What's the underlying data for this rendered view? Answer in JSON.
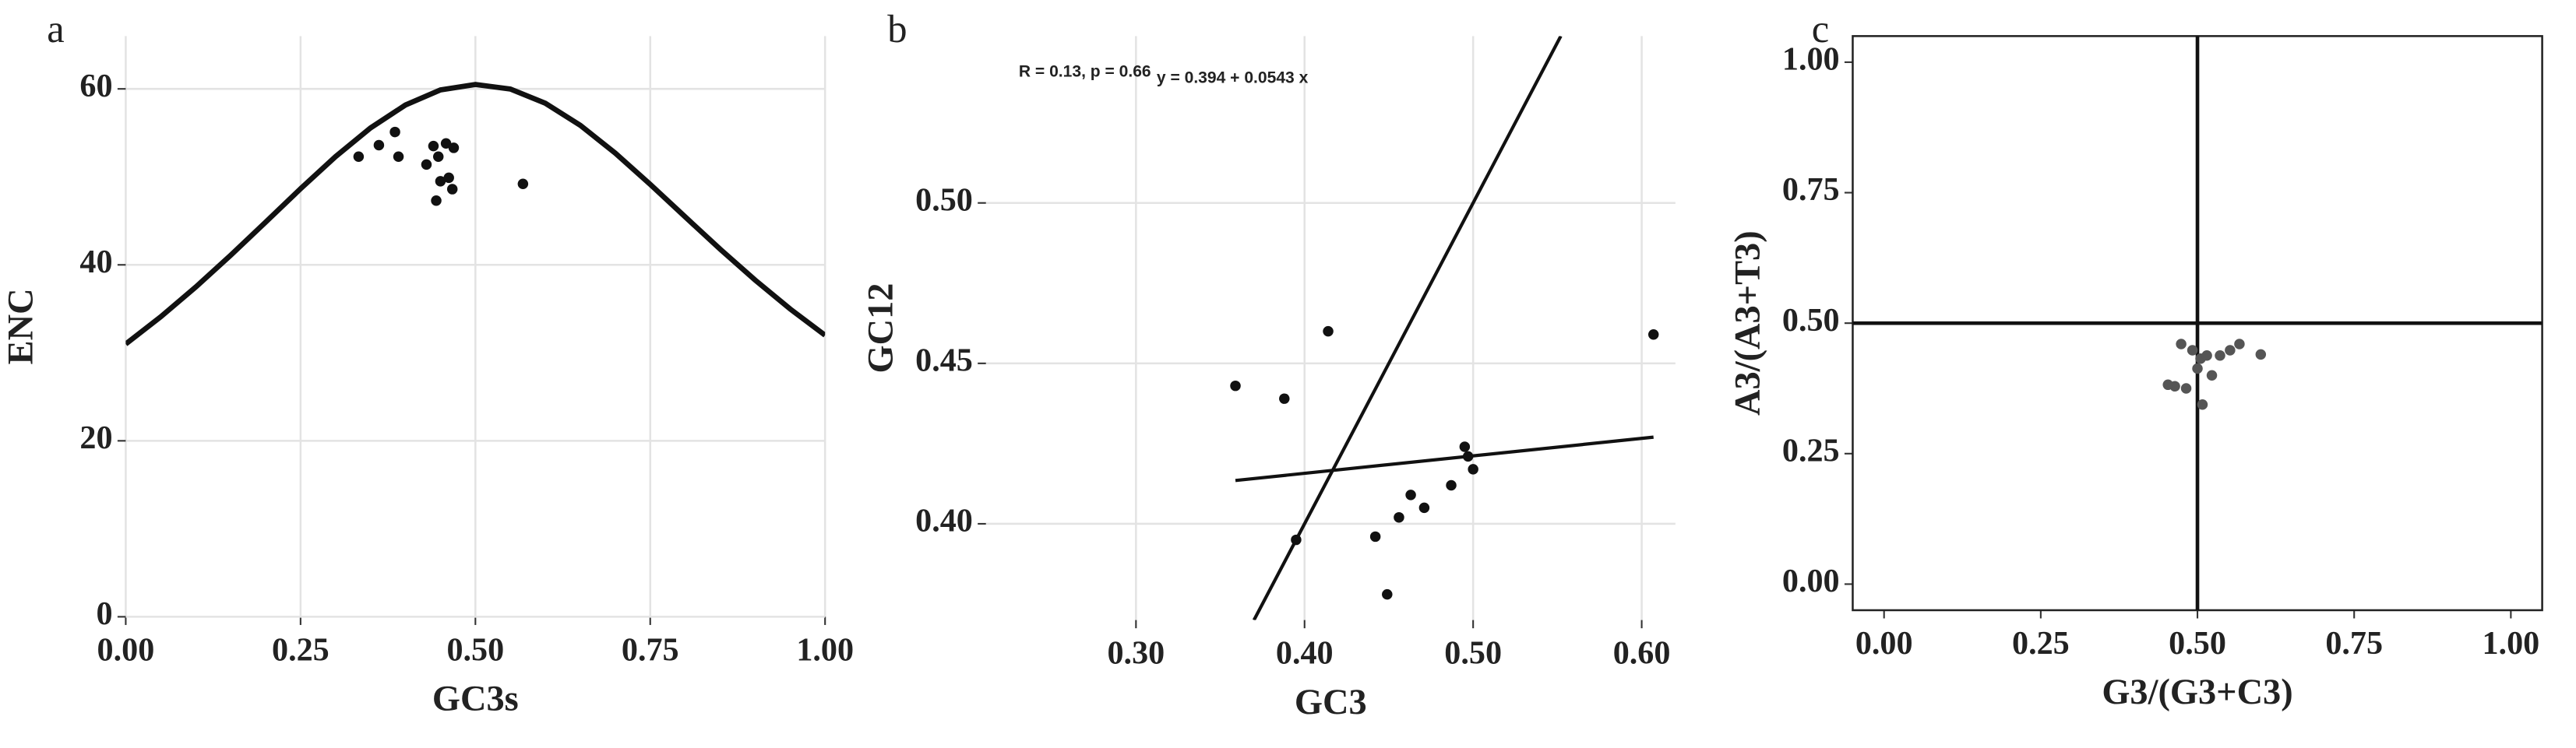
{
  "chart_data": [
    {
      "type": "scatter",
      "panel_label": "a",
      "xlabel": "GC3s",
      "ylabel": "ENC",
      "grid": true,
      "frame": false,
      "xlim": [
        0,
        1
      ],
      "ylim": [
        0,
        66
      ],
      "xticks": [
        {
          "value": 0,
          "label": "0.00"
        },
        {
          "value": 0.25,
          "label": "0.25"
        },
        {
          "value": 0.5,
          "label": "0.50"
        },
        {
          "value": 0.75,
          "label": "0.75"
        },
        {
          "value": 1,
          "label": "1.00"
        }
      ],
      "yticks": [
        0,
        20,
        40,
        60
      ],
      "series": [
        {
          "style": "line",
          "color": "#111111",
          "x": [
            0,
            0.05,
            0.1,
            0.15,
            0.2,
            0.25,
            0.3,
            0.35,
            0.4,
            0.45,
            0.5,
            0.55,
            0.6,
            0.65,
            0.7,
            0.75,
            0.8,
            0.85,
            0.9,
            0.95,
            1
          ],
          "values": [
            31,
            34.09,
            37.47,
            41.08,
            44.85,
            48.65,
            52.3,
            55.56,
            58.17,
            59.88,
            60.5,
            59.98,
            58.37,
            55.86,
            52.7,
            49.15,
            45.45,
            41.78,
            38.27,
            34.99,
            32
          ]
        },
        {
          "style": "points",
          "color": "#111111",
          "x": [
            0.333,
            0.362,
            0.385,
            0.39,
            0.43,
            0.44,
            0.447,
            0.444,
            0.45,
            0.458,
            0.462,
            0.469,
            0.467,
            0.568
          ],
          "values": [
            52.3,
            53.6,
            55.1,
            52.3,
            51.4,
            53.5,
            52.3,
            47.3,
            49.5,
            53.8,
            49.9,
            53.3,
            48.6,
            49.2
          ]
        }
      ]
    },
    {
      "type": "scatter",
      "panel_label": "b",
      "xlabel": "GC3",
      "ylabel": "GC12",
      "grid": true,
      "frame": false,
      "annotations": [
        "R = 0.13, p = 0.66",
        "y = 0.394 + 0.0543 x"
      ],
      "xlim": [
        0.211,
        0.62
      ],
      "ylim": [
        0.37,
        0.552
      ],
      "xticks": [
        {
          "value": 0.3,
          "label": "0.30"
        },
        {
          "value": 0.4,
          "label": "0.40"
        },
        {
          "value": 0.5,
          "label": "0.50"
        },
        {
          "value": 0.6,
          "label": "0.60"
        }
      ],
      "yticks": [
        {
          "value": 0.4,
          "label": "0.40"
        },
        {
          "value": 0.45,
          "label": "0.45"
        },
        {
          "value": 0.5,
          "label": "0.50"
        }
      ],
      "series": [
        {
          "style": "line",
          "color": "#111111",
          "x": [
            0.37,
            0.552
          ],
          "values": [
            0.37,
            0.552
          ]
        },
        {
          "style": "line",
          "color": "#111111",
          "x": [
            0.359,
            0.607
          ],
          "values": [
            0.4135,
            0.427
          ]
        },
        {
          "style": "points",
          "color": "#111111",
          "x": [
            0.359,
            0.388,
            0.414,
            0.395,
            0.442,
            0.449,
            0.456,
            0.463,
            0.471,
            0.487,
            0.495,
            0.497,
            0.5,
            0.607
          ],
          "values": [
            0.443,
            0.439,
            0.46,
            0.395,
            0.396,
            0.378,
            0.402,
            0.409,
            0.405,
            0.412,
            0.424,
            0.421,
            0.417,
            0.459
          ]
        }
      ]
    },
    {
      "type": "scatter",
      "panel_label": "c",
      "xlabel": "G3/(G3+C3)",
      "ylabel": "A3/(A3+T3)",
      "grid": false,
      "frame": true,
      "vline": 0.5,
      "hline": 0.5,
      "xlim": [
        -0.05,
        1.05
      ],
      "ylim": [
        -0.05,
        1.05
      ],
      "xticks": [
        {
          "value": 0,
          "label": "0.00"
        },
        {
          "value": 0.25,
          "label": "0.25"
        },
        {
          "value": 0.5,
          "label": "0.50"
        },
        {
          "value": 0.75,
          "label": "0.75"
        },
        {
          "value": 1,
          "label": "1.00"
        }
      ],
      "yticks": [
        {
          "value": 0,
          "label": "0.00"
        },
        {
          "value": 0.25,
          "label": "0.25"
        },
        {
          "value": 0.5,
          "label": "0.50"
        },
        {
          "value": 0.75,
          "label": "0.75"
        },
        {
          "value": 1,
          "label": "1.00"
        }
      ],
      "series": [
        {
          "style": "points",
          "color": "#555555",
          "x": [
            0.474,
            0.464,
            0.482,
            0.492,
            0.505,
            0.5,
            0.515,
            0.508,
            0.523,
            0.536,
            0.552,
            0.567,
            0.601,
            0.453
          ],
          "values": [
            0.46,
            0.379,
            0.375,
            0.448,
            0.432,
            0.413,
            0.438,
            0.344,
            0.4,
            0.438,
            0.448,
            0.46,
            0.44,
            0.382
          ]
        }
      ]
    }
  ]
}
